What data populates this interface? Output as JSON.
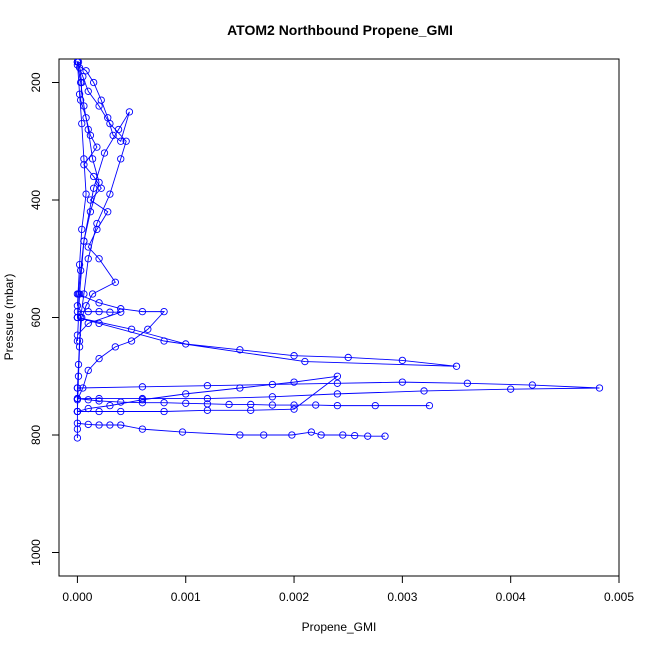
{
  "chart_data": {
    "type": "scatter",
    "title": "ATOM2 Northbound Propene_GMI",
    "xlabel": "Propene_GMI",
    "ylabel": "Pressure (mbar)",
    "xlim": [
      -0.00017,
      0.005
    ],
    "ylim": [
      1040,
      160
    ],
    "y_reversed": true,
    "x_ticks": [
      0.0,
      0.001,
      0.002,
      0.003,
      0.004,
      0.005
    ],
    "x_tick_labels": [
      "0.000",
      "0.001",
      "0.002",
      "0.003",
      "0.004",
      "0.005"
    ],
    "y_ticks": [
      200,
      400,
      600,
      800,
      1000
    ],
    "y_tick_labels": [
      "200",
      "400",
      "600",
      "800",
      "1000"
    ],
    "grid": false,
    "legend": "none",
    "marker": "open-circle",
    "color": "#0000ff",
    "series": [
      {
        "x": [
          1e-05,
          2e-05,
          4e-05,
          3e-05,
          8e-05,
          0.00012,
          0.00018,
          6e-05,
          0.00015,
          0.00022,
          0.00012,
          0.00028,
          0.00018,
          0.0001,
          0.0002,
          0.00035,
          0.00014,
          8e-05,
          4e-05,
          2e-05,
          1e-05,
          0.0,
          0.0,
          0.0,
          0.0
        ],
        "y": [
          165,
          175,
          200,
          230,
          260,
          290,
          310,
          340,
          360,
          380,
          400,
          420,
          450,
          480,
          500,
          540,
          560,
          580,
          600,
          640,
          680,
          720,
          760,
          790,
          805
        ]
      },
      {
        "x": [
          0.0,
          5e-05,
          0.0001,
          0.0002,
          0.0003,
          0.00045,
          0.0004,
          0.0003,
          0.00018,
          0.0001,
          6e-05,
          3e-05,
          2e-05,
          1e-05,
          0.0
        ],
        "y": [
          165,
          190,
          215,
          240,
          270,
          300,
          330,
          390,
          440,
          500,
          560,
          600,
          650,
          700,
          760
        ]
      },
      {
        "x": [
          0.0,
          8e-05,
          0.00015,
          0.00022,
          0.00028,
          0.00033,
          0.0004,
          0.00048,
          0.00038,
          0.00025,
          0.00015,
          6e-05,
          2e-05,
          0.0
        ],
        "y": [
          170,
          180,
          200,
          230,
          260,
          290,
          300,
          250,
          280,
          320,
          380,
          470,
          560,
          640
        ]
      },
      {
        "x": [
          0.0,
          0.0002,
          0.0004,
          0.0006,
          0.0008,
          0.00065,
          0.0005,
          0.00035,
          0.0002,
          0.0001,
          5e-05,
          0.0
        ],
        "y": [
          560,
          575,
          585,
          590,
          590,
          620,
          640,
          650,
          670,
          690,
          720,
          740
        ]
      },
      {
        "x": [
          0.0,
          0.0005,
          0.001,
          0.0015,
          0.002,
          0.0025,
          0.003,
          0.0035,
          0.0021,
          0.0008,
          0.0002,
          0.0
        ],
        "y": [
          600,
          620,
          645,
          655,
          665,
          668,
          673,
          683,
          675,
          640,
          610,
          600
        ]
      },
      {
        "x": [
          0.0,
          0.0006,
          0.0012,
          0.0018,
          0.0024,
          0.003,
          0.0036,
          0.0042,
          0.00482,
          0.004,
          0.0032,
          0.0024,
          0.0018,
          0.0012,
          0.0006,
          0.0002,
          0.0
        ],
        "y": [
          720,
          718,
          716,
          714,
          712,
          710,
          712,
          715,
          720,
          722,
          725,
          730,
          735,
          738,
          738,
          738,
          738
        ]
      },
      {
        "x": [
          0.0,
          0.0001,
          0.0002,
          0.0004,
          0.0006,
          0.0008,
          0.001,
          0.0012,
          0.0014,
          0.0016,
          0.0018,
          0.002,
          0.0022,
          0.0024,
          0.00275,
          0.00325
        ],
        "y": [
          738,
          740,
          742,
          744,
          745,
          745,
          746,
          747,
          748,
          748,
          749,
          749,
          749,
          750,
          750,
          750
        ]
      },
      {
        "x": [
          0.0,
          0.0002,
          0.0004,
          0.0008,
          0.0012,
          0.0016,
          0.002,
          0.0024,
          0.002,
          0.0015,
          0.001,
          0.0006,
          0.0003,
          0.0001,
          0.0
        ],
        "y": [
          760,
          760,
          760,
          760,
          758,
          758,
          756,
          700,
          710,
          720,
          730,
          740,
          750,
          755,
          760
        ]
      },
      {
        "x": [
          0.0,
          0.0001,
          0.0002,
          0.0003,
          0.0004,
          0.0006,
          0.00097,
          0.0015,
          0.00172,
          0.00198,
          0.00216,
          0.00225,
          0.00245,
          0.00256,
          0.00268,
          0.00284
        ],
        "y": [
          780,
          782,
          783,
          783,
          783,
          790,
          795,
          800,
          800,
          800,
          795,
          800,
          800,
          801,
          802,
          802
        ]
      },
      {
        "x": [
          0.0,
          0.0001,
          0.0002,
          0.0003,
          0.0004,
          0.0001,
          0.0
        ],
        "y": [
          590,
          590,
          590,
          591,
          591,
          610,
          630
        ]
      },
      {
        "x": [
          0.0,
          3e-05,
          6e-05,
          0.0001,
          0.00014,
          0.0002,
          0.00012,
          6e-05,
          3e-05,
          1e-05,
          0.0
        ],
        "y": [
          165,
          200,
          240,
          280,
          330,
          370,
          420,
          470,
          520,
          560,
          600
        ]
      },
      {
        "x": [
          0.0,
          2e-05,
          4e-05,
          6e-05,
          8e-05,
          4e-05,
          2e-05,
          0.0
        ],
        "y": [
          165,
          220,
          270,
          330,
          390,
          450,
          510,
          580
        ]
      }
    ]
  }
}
